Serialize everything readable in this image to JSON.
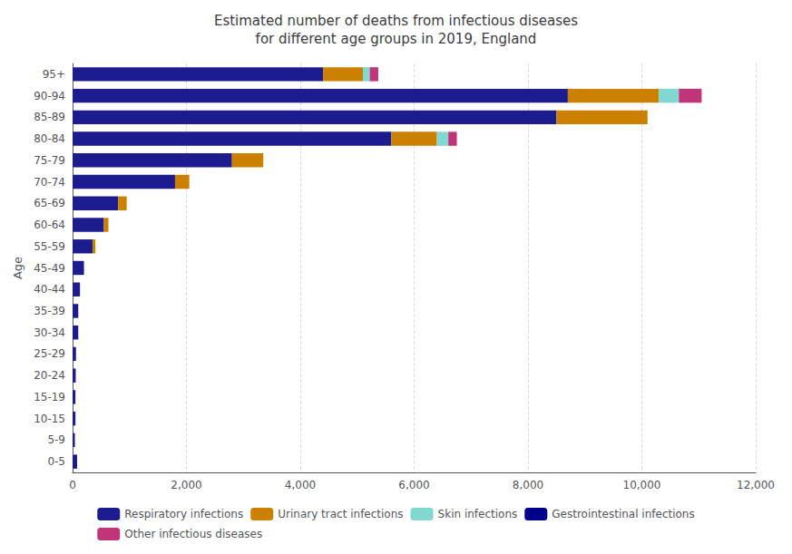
{
  "chart_data": {
    "type": "bar",
    "orientation": "horizontal",
    "stacked": true,
    "title": "Estimated number of deaths from infectious diseases\nfor different age groups in 2019, England",
    "ylabel": "Age",
    "categories": [
      "0-5",
      "5-9",
      "10-15",
      "15-19",
      "20-24",
      "25-29",
      "30-34",
      "35-39",
      "40-44",
      "45-49",
      "55-59",
      "60-64",
      "65-69",
      "70-74",
      "75-79",
      "80-84",
      "85-89",
      "90-94",
      "95+"
    ],
    "series": [
      {
        "name": "Respiratory infections",
        "color": "#1c1c8f",
        "values": [
          80,
          40,
          50,
          50,
          55,
          60,
          100,
          100,
          130,
          200,
          350,
          550,
          800,
          1800,
          2800,
          5600,
          8500,
          8700,
          4400
        ]
      },
      {
        "name": "Urinary tract infections",
        "color": "#cc8000",
        "values": [
          0,
          0,
          0,
          0,
          0,
          0,
          0,
          0,
          0,
          0,
          50,
          80,
          150,
          250,
          550,
          800,
          1600,
          1600,
          700
        ]
      },
      {
        "name": "Skin infections",
        "color": "#80d8d0",
        "values": [
          0,
          0,
          0,
          0,
          0,
          0,
          0,
          0,
          0,
          0,
          0,
          0,
          0,
          0,
          0,
          200,
          0,
          350,
          120
        ]
      },
      {
        "name": "Gestrointestinal infections",
        "color": "#00008b",
        "values": [
          0,
          0,
          0,
          0,
          0,
          0,
          0,
          0,
          0,
          0,
          0,
          0,
          0,
          0,
          0,
          0,
          0,
          0,
          0
        ]
      },
      {
        "name": "Other infectious diseases",
        "color": "#c0357a",
        "values": [
          0,
          0,
          0,
          0,
          0,
          0,
          0,
          0,
          0,
          0,
          0,
          0,
          0,
          0,
          0,
          150,
          0,
          400,
          150
        ]
      }
    ],
    "xlim": [
      0,
      12000
    ],
    "xticks": [
      0,
      {
        "value": 2000,
        "label": "2,000"
      },
      {
        "value": 4000,
        "label": "4,000"
      },
      {
        "value": 6000,
        "label": "6,000"
      },
      {
        "value": 8000,
        "label": "8,000"
      },
      {
        "value": 10000,
        "label": "10,000"
      },
      {
        "value": 12000,
        "label": "12,000"
      }
    ],
    "grid": true,
    "legend": "bottom"
  }
}
